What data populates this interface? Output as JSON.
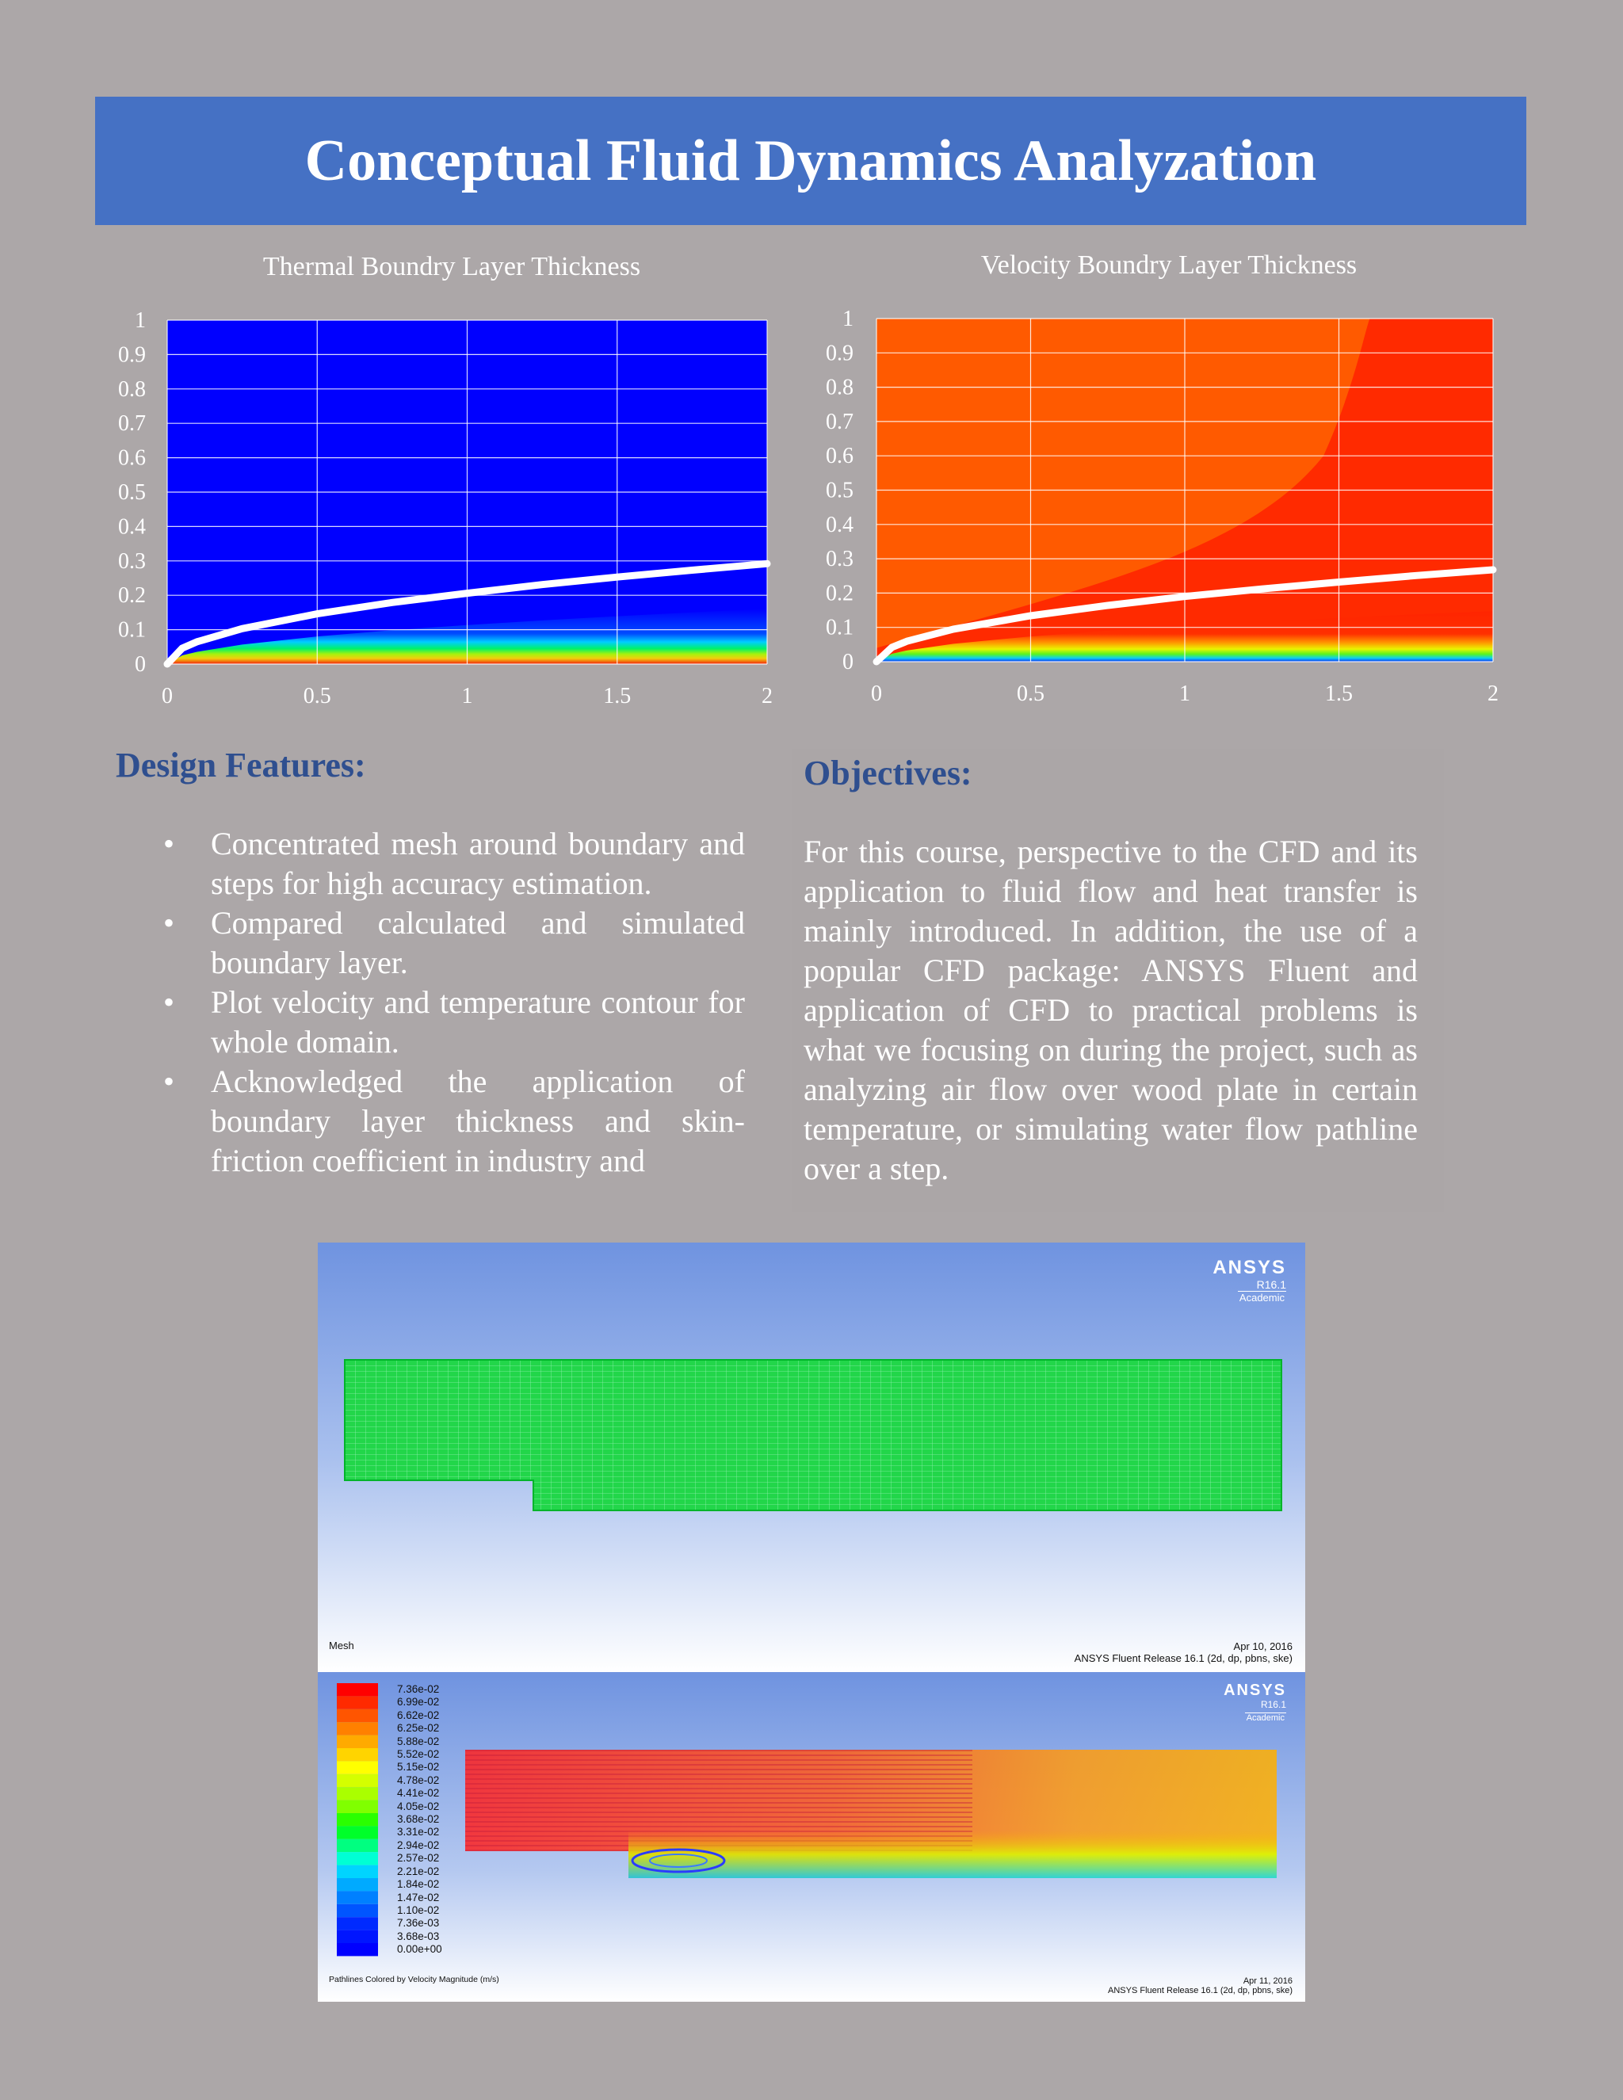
{
  "header": {
    "title": "Conceptual Fluid Dynamics Analyzation"
  },
  "charts": {
    "thermal": {
      "title": "Thermal Boundry Layer Thickness"
    },
    "velocity": {
      "title": "Velocity Boundry Layer Thickness"
    }
  },
  "chart_data": [
    {
      "type": "area",
      "title": "Thermal Boundry Layer Thickness",
      "xlabel": "",
      "ylabel": "",
      "xlim": [
        0,
        2
      ],
      "ylim": [
        0,
        1
      ],
      "x_ticks": [
        "0",
        "0.5",
        "1",
        "1.5",
        "2"
      ],
      "y_ticks": [
        "0",
        "0.1",
        "0.2",
        "0.3",
        "0.4",
        "0.5",
        "0.6",
        "0.7",
        "0.8",
        "0.9",
        "1"
      ],
      "grid": true,
      "series": [
        {
          "x": [
            0,
            0.05,
            0.1,
            0.25,
            0.5,
            0.75,
            1.0,
            1.25,
            1.5,
            1.75,
            2.0
          ],
          "y": [
            0,
            0.046,
            0.065,
            0.103,
            0.146,
            0.179,
            0.206,
            0.231,
            0.253,
            0.273,
            0.292
          ]
        }
      ],
      "colors": {
        "background": "#0000ff",
        "curve": "#ffffff"
      }
    },
    {
      "type": "area",
      "title": "Velocity Boundry Layer Thickness",
      "xlabel": "",
      "ylabel": "",
      "xlim": [
        0,
        2
      ],
      "ylim": [
        0,
        1
      ],
      "x_ticks": [
        "0",
        "0.5",
        "1",
        "1.5",
        "2"
      ],
      "y_ticks": [
        "0",
        "0.1",
        "0.2",
        "0.3",
        "0.4",
        "0.5",
        "0.6",
        "0.7",
        "0.8",
        "0.9",
        "1"
      ],
      "grid": true,
      "series": [
        {
          "x": [
            0,
            0.05,
            0.1,
            0.25,
            0.5,
            0.75,
            1.0,
            1.25,
            1.5,
            1.75,
            2.0
          ],
          "y": [
            0,
            0.042,
            0.06,
            0.095,
            0.134,
            0.164,
            0.19,
            0.212,
            0.232,
            0.251,
            0.268
          ]
        }
      ],
      "colors": {
        "background": "#ff5a00",
        "curve": "#ffffff"
      }
    }
  ],
  "design": {
    "heading": "Design Features:",
    "bullet_symbol": "•",
    "items": [
      "Concentrated mesh around boundary and steps for high accuracy estimation.",
      "Compared calculated and simulated boundary layer.",
      "Plot velocity and temperature contour for whole domain.",
      "Acknowledged the application of boundary layer thickness and skin-friction coefficient in industry and"
    ]
  },
  "objectives": {
    "heading": "Objectives:",
    "text": "For this course, perspective to the CFD and its application to fluid flow and heat transfer is mainly introduced. In addition, the use of a popular CFD package: ANSYS Fluent and application of CFD to practical problems is what we focusing on during the project, such as analyzing air flow over wood plate in certain temperature, or simulating water flow pathline over a step."
  },
  "figures": {
    "mesh": {
      "brand": "ANSYS",
      "version": "R16.1",
      "edition": "Academic",
      "label": "Mesh",
      "date": "Apr 10, 2016",
      "release": "ANSYS Fluent Release 16.1 (2d, dp, pbns, ske)"
    },
    "pathlines": {
      "brand": "ANSYS",
      "version": "R16.1",
      "edition": "Academic",
      "label": "Pathlines Colored by Velocity Magnitude (m/s)",
      "date": "Apr 11, 2016",
      "release": "ANSYS Fluent Release 16.1 (2d, dp, pbns, ske)",
      "legend": [
        "7.36e-02",
        "6.99e-02",
        "6.62e-02",
        "6.25e-02",
        "5.88e-02",
        "5.52e-02",
        "5.15e-02",
        "4.78e-02",
        "4.41e-02",
        "4.05e-02",
        "3.68e-02",
        "3.31e-02",
        "2.94e-02",
        "2.57e-02",
        "2.21e-02",
        "1.84e-02",
        "1.47e-02",
        "1.10e-02",
        "7.36e-03",
        "3.68e-03",
        "0.00e+00"
      ],
      "legend_colors": [
        "#ff0000",
        "#ff2a00",
        "#ff5500",
        "#ff8000",
        "#ffaa00",
        "#ffd400",
        "#ffff00",
        "#d4ff00",
        "#aaff00",
        "#80ff00",
        "#2aff00",
        "#00ff2a",
        "#00ff80",
        "#00ffd4",
        "#00d4ff",
        "#00aaff",
        "#0080ff",
        "#0055ff",
        "#002aff",
        "#0015ff",
        "#0000ff"
      ]
    }
  }
}
